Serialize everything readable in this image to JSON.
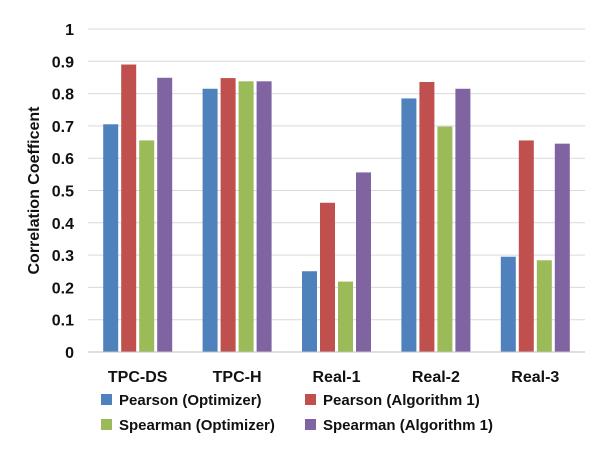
{
  "chart_data": {
    "type": "bar",
    "title": "",
    "xlabel": "",
    "ylabel": "Correlation Coefficent",
    "categories": [
      "TPC-DS",
      "TPC-H",
      "Real-1",
      "Real-2",
      "Real-3"
    ],
    "series": [
      {
        "name": "Pearson (Optimizer)",
        "color": "#4f81bd",
        "values": [
          0.705,
          0.815,
          0.25,
          0.785,
          0.295
        ]
      },
      {
        "name": "Pearson (Algorithm 1)",
        "color": "#c0504d",
        "values": [
          0.89,
          0.848,
          0.462,
          0.836,
          0.655
        ]
      },
      {
        "name": "Spearman (Optimizer)",
        "color": "#9bbb59",
        "values": [
          0.655,
          0.838,
          0.218,
          0.698,
          0.284
        ]
      },
      {
        "name": "Spearman (Algorithm 1)",
        "color": "#8064a2",
        "values": [
          0.849,
          0.838,
          0.556,
          0.815,
          0.645
        ]
      }
    ],
    "yticks": [
      "0",
      "0.1",
      "0.2",
      "0.3",
      "0.4",
      "0.5",
      "0.6",
      "0.7",
      "0.8",
      "0.9",
      "1"
    ],
    "ylim": [
      0,
      1
    ],
    "grid": true,
    "legend_position": "bottom"
  }
}
